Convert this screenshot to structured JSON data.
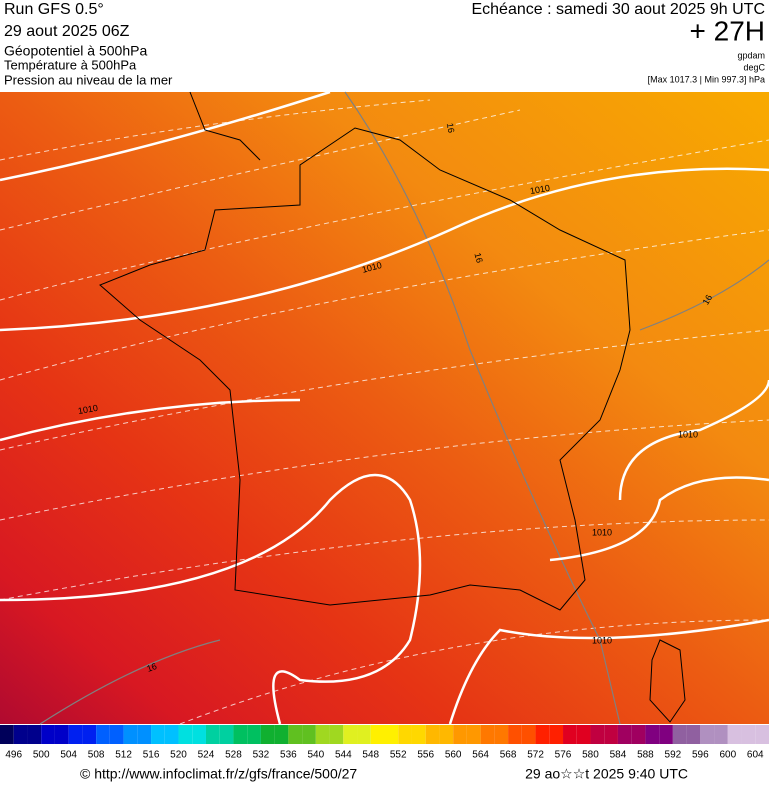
{
  "header": {
    "run": "Run GFS 0.5°",
    "date": "29 aout 2025 06Z",
    "line1": "Géopotentiel à 500hPa",
    "line2": "Température à 500hPa",
    "line3": "Pression au niveau de la mer",
    "echeance": "Echéance : samedi 30 aout 2025 9h UTC",
    "lead": "+ 27H",
    "unit1": "gpdam",
    "unit2": "degC",
    "minmax": "[Max 1017.3 | Min 997.3] hPa"
  },
  "map": {
    "contour_labels": [
      "1010",
      "1010",
      "1010",
      "1010",
      "1010",
      "1010",
      "16",
      "16",
      "16",
      "16"
    ]
  },
  "colorbar": {
    "ticks": [
      496,
      500,
      504,
      508,
      512,
      516,
      520,
      524,
      528,
      532,
      536,
      540,
      544,
      548,
      552,
      556,
      560,
      564,
      568,
      572,
      576,
      580,
      584,
      588,
      592,
      596,
      600,
      604
    ],
    "colors": [
      "#00005a",
      "#00008c",
      "#0000c8",
      "#0020f0",
      "#0060ff",
      "#0090ff",
      "#00c0ff",
      "#00e0e0",
      "#00d0a0",
      "#00c060",
      "#10b030",
      "#60c020",
      "#a0d820",
      "#e0f020",
      "#fff000",
      "#ffd800",
      "#ffb800",
      "#ff9800",
      "#ff7800",
      "#ff5000",
      "#ff2000",
      "#e00020",
      "#c00040",
      "#a00060",
      "#800080",
      "#9060a0",
      "#b090c0",
      "#d8c0e0"
    ]
  },
  "footer": {
    "url": "© http://www.infoclimat.fr/z/gfs/france/500/27",
    "time": "29 ao☆☆t 2025  9:40 UTC"
  }
}
